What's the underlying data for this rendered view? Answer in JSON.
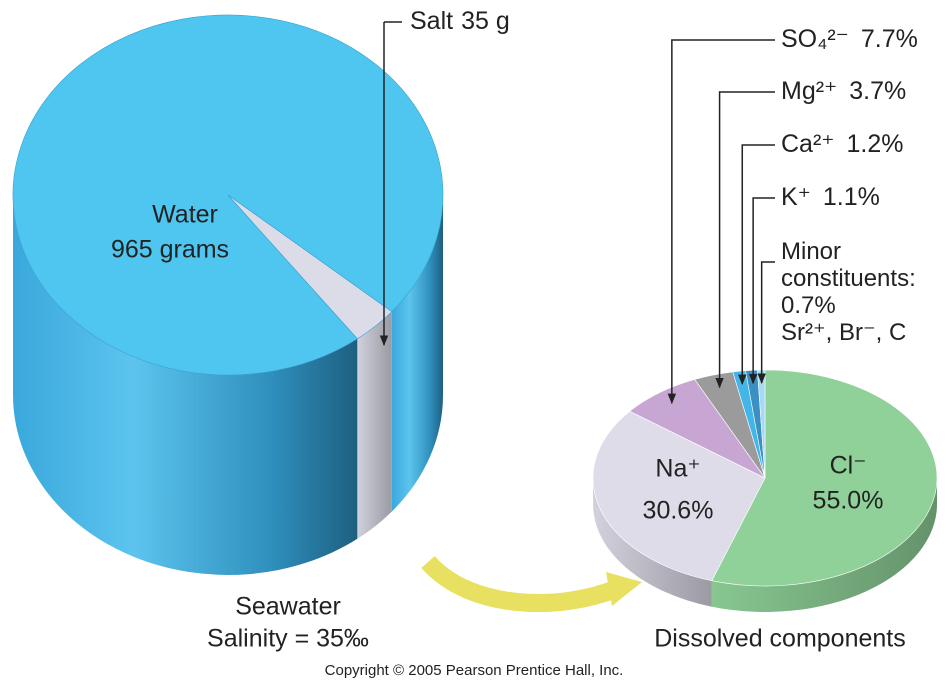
{
  "chart_data": [
    {
      "type": "pie3d",
      "title": "Seawater",
      "subtitle": "Salinity = 35‰",
      "categories": [
        "Water",
        "Salt"
      ],
      "values": [
        965,
        35
      ],
      "value_labels": [
        "965 grams",
        "35 g"
      ],
      "colors": [
        "#4fc6f0",
        "#dcdce8"
      ]
    },
    {
      "type": "pie3d",
      "title": "Dissolved components",
      "categories": [
        "Cl⁻",
        "Na⁺",
        "SO₄²⁻",
        "Mg²⁺",
        "Ca²⁺",
        "K⁺",
        "Minor constituents:"
      ],
      "values": [
        55.0,
        30.6,
        7.7,
        3.7,
        1.2,
        1.1,
        0.7
      ],
      "value_labels": [
        "55.0%",
        "30.6%",
        "7.7%",
        "3.7%",
        "1.2%",
        "1.1%",
        "0.7%"
      ],
      "colors": [
        "#8fd198",
        "#dedce9",
        "#c8a6d4",
        "#9b9b9b",
        "#42b6e8",
        "#3b8fc2",
        "#a6d9f2"
      ],
      "annotation": "Sr²⁺, Br⁻, C"
    }
  ],
  "copyright": "Copyright © 2005 Pearson Prentice Hall, Inc."
}
